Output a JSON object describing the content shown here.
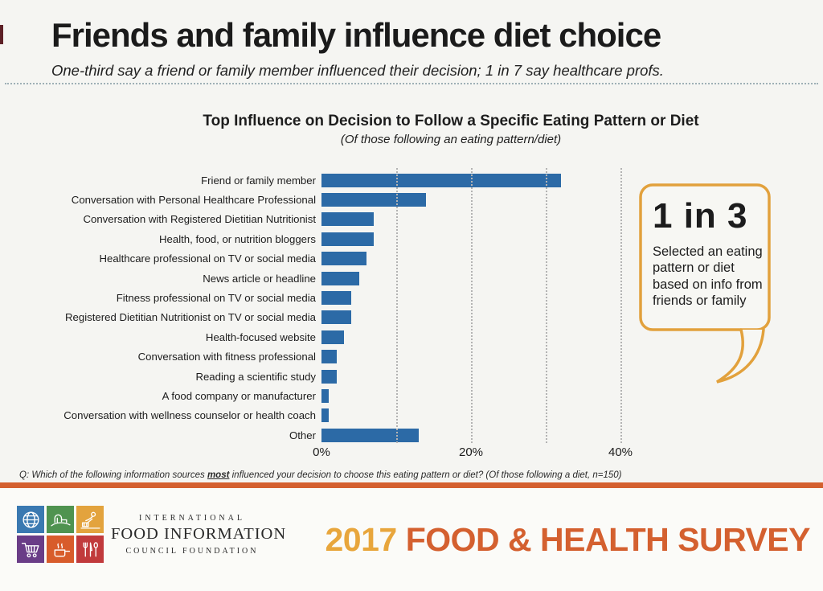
{
  "page": {
    "title": "Friends and family influence diet choice",
    "subtitle": "One-third say a friend or family member influenced their decision; 1 in 7 say healthcare profs."
  },
  "chart_data": {
    "type": "bar",
    "orientation": "horizontal",
    "title": "Top Influence on Decision to Follow a Specific Eating Pattern or Diet",
    "subtitle": "(Of those following an eating pattern/diet)",
    "categories": [
      "Friend or family member",
      "Conversation with Personal Healthcare Professional",
      "Conversation with Registered Dietitian Nutritionist",
      "Health, food, or nutrition bloggers",
      "Healthcare professional on TV or social media",
      "News article or headline",
      "Fitness professional on TV or social media",
      "Registered Dietitian Nutritionist on TV or social media",
      "Health-focused website",
      "Conversation with fitness professional",
      "Reading a scientific study",
      "A food company or manufacturer",
      "Conversation with wellness counselor or health coach",
      "Other"
    ],
    "values": [
      32,
      14,
      7,
      7,
      6,
      5,
      4,
      4,
      3,
      2,
      2,
      1,
      1,
      13
    ],
    "unit": "%",
    "xlim": [
      0,
      44
    ],
    "gridlines_pct": [
      10,
      20,
      30,
      40
    ],
    "ticks": [
      {
        "label": "0%",
        "pct": 0
      },
      {
        "label": "20%",
        "pct": 20
      },
      {
        "label": "40%",
        "pct": 40
      }
    ],
    "grid": true,
    "legend": false,
    "bar_color": "#2c6aa6",
    "gridline_color": "#b3b3b3"
  },
  "callout": {
    "headline": "1 in 3",
    "body": "Selected an eating pattern or diet based on info from friends or family",
    "border_color": "#e2a13c",
    "fill_color": "#f7f7f3"
  },
  "footnote": {
    "prefix": "Q: Which of the following information sources ",
    "underlined": "most",
    "suffix": " influenced your decision to choose this eating pattern or diet? (Of those following a diet, n=150)"
  },
  "footer": {
    "rule_color": "#d4602f",
    "logo": {
      "line1": "INTERNATIONAL",
      "line2": "FOOD INFORMATION",
      "line3": "COUNCIL FOUNDATION",
      "tiles": [
        {
          "name": "globe-icon",
          "color": "#3a79b1"
        },
        {
          "name": "farm-icon",
          "color": "#4f9350"
        },
        {
          "name": "farmer-icon",
          "color": "#e3a33d"
        },
        {
          "name": "shopping-cart-icon",
          "color": "#6a3d87"
        },
        {
          "name": "cooking-pot-icon",
          "color": "#d85c2b"
        },
        {
          "name": "utensils-icon",
          "color": "#c13a3c"
        }
      ]
    },
    "survey": {
      "year": "2017",
      "title": "FOOD & HEALTH SURVEY",
      "year_color": "#e8a63c",
      "title_color": "#d4602f"
    }
  }
}
